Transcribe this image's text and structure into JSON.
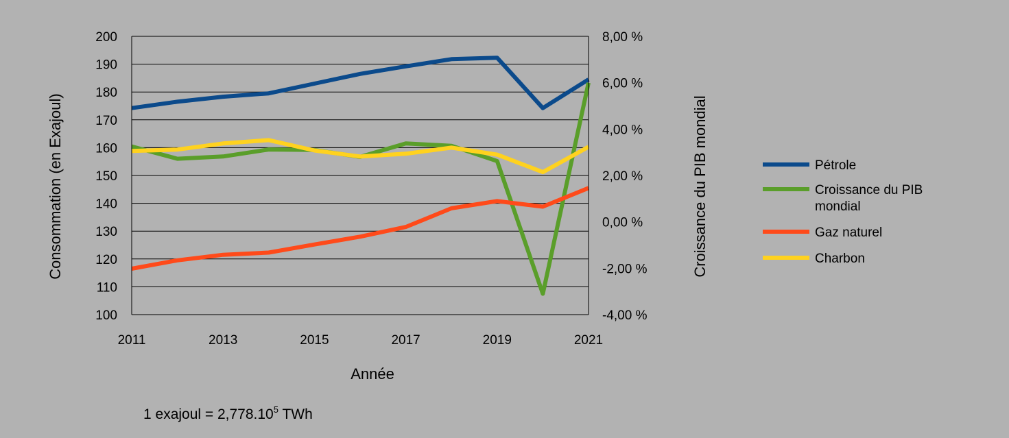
{
  "chart_data": {
    "type": "line",
    "x": [
      2011,
      2012,
      2013,
      2014,
      2015,
      2016,
      2017,
      2018,
      2019,
      2020,
      2021
    ],
    "x_tick_labels": [
      "2011",
      "2013",
      "2015",
      "2017",
      "2019",
      "2021"
    ],
    "xlabel": "Année",
    "ylabel_left": "Consommation (en Exajoul)",
    "ylabel_right": "Croissance du PIB mondial",
    "ylim_left": [
      100,
      200
    ],
    "ylim_right": [
      -4,
      8
    ],
    "y_tick_labels_left": [
      "100",
      "110",
      "120",
      "130",
      "140",
      "150",
      "160",
      "170",
      "180",
      "190",
      "200"
    ],
    "y_tick_labels_right": [
      "-4,00 %",
      "-2,00 %",
      "0,00 %",
      "2,00 %",
      "4,00 %",
      "6,00 %",
      "8,00 %"
    ],
    "grid": "horizontal",
    "legend_position": "right",
    "series": [
      {
        "name": "Pétrole",
        "axis": "left",
        "color": "#0b4a8b",
        "values": [
          174.2,
          176.5,
          178.3,
          179.5,
          183.0,
          186.5,
          189.2,
          191.8,
          192.3,
          174.2,
          184.5
        ]
      },
      {
        "name": "Croissance du PIB mondial",
        "axis": "right",
        "color": "#5a9e2a",
        "values": [
          3.25,
          2.72,
          2.82,
          3.12,
          3.1,
          2.8,
          3.38,
          3.28,
          2.62,
          -3.1,
          6.0
        ]
      },
      {
        "name": "Gaz naturel",
        "axis": "left",
        "color": "#ff4a1a",
        "values": [
          116.5,
          119.5,
          121.5,
          122.3,
          125.2,
          128.0,
          131.5,
          138.2,
          140.8,
          138.8,
          145.5
        ]
      },
      {
        "name": "Charbon",
        "axis": "left",
        "color": "#ffd21f",
        "values": [
          158.8,
          159.3,
          161.5,
          162.7,
          159.0,
          156.8,
          157.8,
          160.0,
          157.5,
          151.2,
          160.3
        ]
      }
    ],
    "legend": [
      "Pétrole",
      "Croissance du PIB\nmondial",
      "Gaz naturel",
      "Charbon"
    ],
    "footnote": {
      "text": "1 exajoul = 2,778.10",
      "sup": "5",
      "unit": " TWh"
    }
  }
}
